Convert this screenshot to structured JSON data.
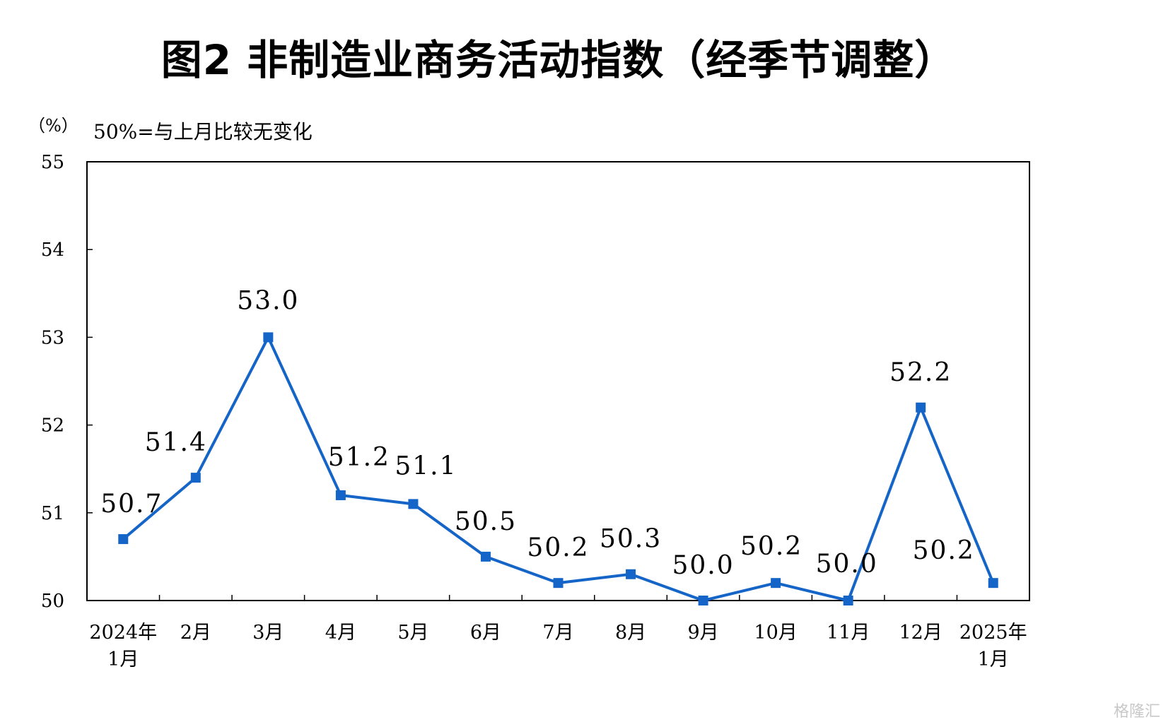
{
  "title": "图2  非制造业商务活动指数（经季节调整）",
  "unit_label": "（%）",
  "note": "50%=与上月比较无变化",
  "watermark": "格隆汇",
  "colors": {
    "line": "#1565c8",
    "marker": "#1565c8",
    "axis": "#000000"
  },
  "chart_data": {
    "type": "line",
    "title": "图2  非制造业商务活动指数（经季节调整）",
    "xlabel": "",
    "ylabel": "（%）",
    "ylim": [
      50,
      55
    ],
    "yticks": [
      50,
      51,
      52,
      53,
      54,
      55
    ],
    "categories": [
      [
        "2024年",
        "1月"
      ],
      [
        "2月"
      ],
      [
        "3月"
      ],
      [
        "4月"
      ],
      [
        "5月"
      ],
      [
        "6月"
      ],
      [
        "7月"
      ],
      [
        "8月"
      ],
      [
        "9月"
      ],
      [
        "10月"
      ],
      [
        "11月"
      ],
      [
        "12月"
      ],
      [
        "2025年",
        "1月"
      ]
    ],
    "series": [
      {
        "values": [
          50.7,
          51.4,
          53.0,
          51.2,
          51.1,
          50.5,
          50.2,
          50.3,
          50.0,
          50.2,
          50.0,
          52.2,
          50.2
        ],
        "labels": [
          "50.7",
          "51.4",
          "53.0",
          "51.2",
          "51.1",
          "50.5",
          "50.2",
          "50.3",
          "50.0",
          "50.2",
          "50.0",
          "52.2",
          "50.2"
        ]
      }
    ],
    "grid": false,
    "legend": "none"
  }
}
